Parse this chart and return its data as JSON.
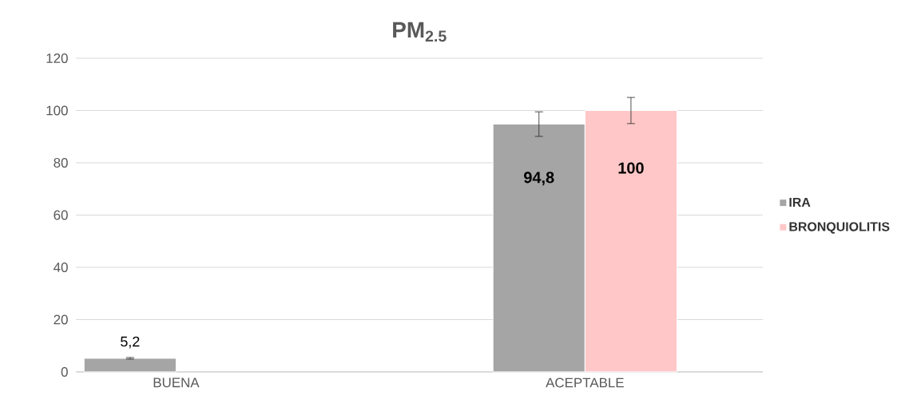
{
  "chart_data": {
    "type": "bar",
    "title": "PM$_{2.5}$",
    "categories": [
      "BUENA",
      "ACEPTABLE"
    ],
    "series": [
      {
        "name": "IRA",
        "color": "#a5a5a5",
        "values": [
          5.2,
          94.8
        ],
        "errors": [
          0.3,
          4.7
        ],
        "value_labels": [
          "5,2",
          "94,8"
        ]
      },
      {
        "name": "BRONQUIOLITIS",
        "color": "#ffc7c7",
        "values": [
          null,
          100
        ],
        "errors": [
          null,
          5
        ],
        "value_labels": [
          null,
          "100"
        ]
      }
    ],
    "ylim": [
      0,
      120
    ],
    "yticks": [
      0,
      20,
      40,
      60,
      80,
      100,
      120
    ],
    "grid": "y",
    "legend": "right"
  }
}
